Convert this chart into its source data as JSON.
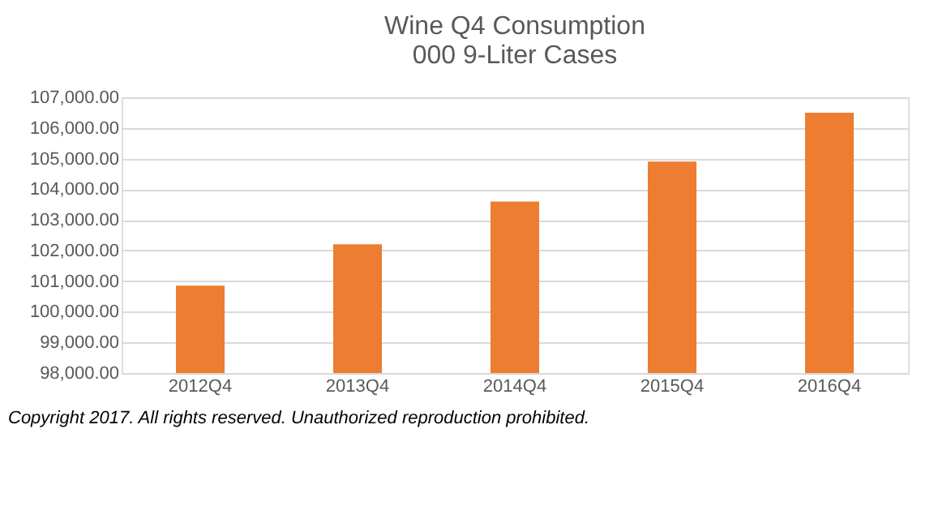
{
  "chart_data": {
    "type": "bar",
    "title": [
      "Wine Q4 Consumption",
      "000 9-Liter Cases"
    ],
    "categories": [
      "2012Q4",
      "2013Q4",
      "2014Q4",
      "2015Q4",
      "2016Q4"
    ],
    "values": [
      100850,
      102200,
      103600,
      104900,
      106500
    ],
    "color": "#ed7d31",
    "ylim": [
      98000,
      107000
    ],
    "yticks": [
      {
        "value": 98000,
        "label": "98,000.00"
      },
      {
        "value": 99000,
        "label": "99,000.00"
      },
      {
        "value": 100000,
        "label": "100,000.00"
      },
      {
        "value": 101000,
        "label": "101,000.00"
      },
      {
        "value": 102000,
        "label": "102,000.00"
      },
      {
        "value": 103000,
        "label": "103,000.00"
      },
      {
        "value": 104000,
        "label": "104,000.00"
      },
      {
        "value": 105000,
        "label": "105,000.00"
      },
      {
        "value": 106000,
        "label": "106,000.00"
      },
      {
        "value": 107000,
        "label": "107,000.00"
      }
    ],
    "grid": "y",
    "annotations": [
      "Copyright 2017.  All rights reserved. Unauthorized reproduction prohibited."
    ]
  }
}
